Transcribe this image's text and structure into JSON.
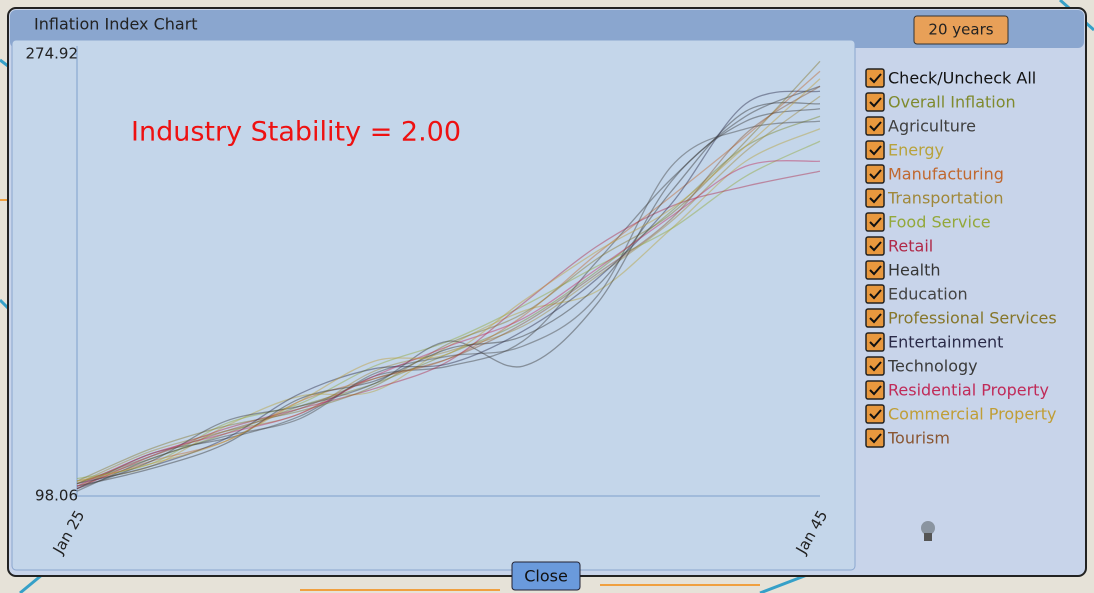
{
  "window": {
    "title": "Inflation Index Chart",
    "range_button": "20 years",
    "close_button": "Close"
  },
  "legend_toggle": "Check/Uncheck All",
  "chart_data": {
    "type": "line",
    "annotation": "Industry Stability = 2.00",
    "categories": [
      "Jan 25",
      null,
      null,
      null,
      null,
      null,
      null,
      null,
      null,
      null,
      "Jan 45"
    ],
    "ylim": [
      98.06,
      274.92
    ],
    "yticks": [
      98.06,
      274.92
    ],
    "series": [
      {
        "name": "Overall Inflation",
        "color": "#7f8a2e",
        "values": [
          103,
          113,
          123,
          134,
          143,
          155,
          168,
          188,
          212,
          238,
          250
        ]
      },
      {
        "name": "Agriculture",
        "color": "#3f3f3f",
        "values": [
          101,
          115,
          121,
          130,
          146,
          150,
          160,
          192,
          225,
          250,
          262
        ]
      },
      {
        "name": "Energy",
        "color": "#b8a23a",
        "values": [
          104,
          110,
          126,
          138,
          140,
          158,
          172,
          180,
          205,
          232,
          245
        ]
      },
      {
        "name": "Manufacturing",
        "color": "#c0682f",
        "values": [
          102,
          112,
          120,
          136,
          145,
          153,
          170,
          195,
          218,
          242,
          268
        ]
      },
      {
        "name": "Transportation",
        "color": "#a0883a",
        "values": [
          103,
          116,
          124,
          131,
          148,
          156,
          166,
          186,
          208,
          236,
          258
        ]
      },
      {
        "name": "Food Service",
        "color": "#93a83a",
        "values": [
          105,
          111,
          127,
          135,
          150,
          160,
          174,
          190,
          205,
          226,
          240
        ]
      },
      {
        "name": "Retail",
        "color": "#b02848",
        "values": [
          101,
          114,
          125,
          133,
          141,
          152,
          175,
          198,
          214,
          222,
          228
        ]
      },
      {
        "name": "Health",
        "color": "#363636",
        "values": [
          102,
          109,
          119,
          137,
          144,
          157,
          162,
          182,
          220,
          252,
          255
        ]
      },
      {
        "name": "Education",
        "color": "#444444",
        "values": [
          100,
          113,
          122,
          129,
          147,
          154,
          158,
          178,
          230,
          245,
          248
        ]
      },
      {
        "name": "Professional Services",
        "color": "#86762a",
        "values": [
          104,
          117,
          126,
          132,
          142,
          159,
          171,
          193,
          211,
          240,
          272
        ]
      },
      {
        "name": "Entertainment",
        "color": "#2a2a48",
        "values": [
          103,
          110,
          121,
          139,
          149,
          151,
          164,
          185,
          215,
          255,
          260
        ]
      },
      {
        "name": "Technology",
        "color": "#3a3a3a",
        "values": [
          101,
          112,
          128,
          134,
          143,
          160,
          150,
          175,
          224,
          248,
          253
        ]
      },
      {
        "name": "Residential Property",
        "color": "#c02a58",
        "values": [
          102,
          115,
          123,
          131,
          146,
          158,
          169,
          189,
          210,
          230,
          232
        ]
      },
      {
        "name": "Commercial Property",
        "color": "#c09e36",
        "values": [
          104,
          111,
          120,
          136,
          152,
          155,
          176,
          196,
          213,
          238,
          265
        ]
      },
      {
        "name": "Tourism",
        "color": "#8a5632",
        "values": [
          103,
          114,
          124,
          133,
          145,
          153,
          167,
          187,
          209,
          243,
          262
        ]
      }
    ]
  }
}
